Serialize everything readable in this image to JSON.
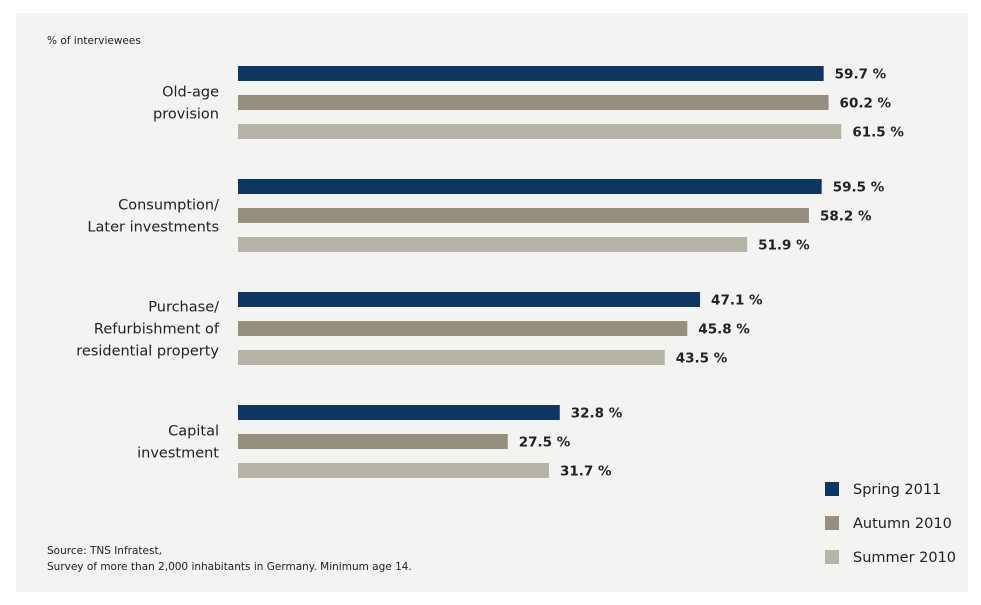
{
  "chart_data": {
    "type": "bar",
    "orientation": "horizontal",
    "unit_label": "% of interviewees",
    "categories": [
      [
        "Old-age",
        "provision"
      ],
      [
        "Consumption/",
        "Later investments"
      ],
      [
        "Purchase/",
        "Refurbishment of",
        "residential property"
      ],
      [
        "Capital",
        "investment"
      ]
    ],
    "series": [
      {
        "name": "Spring 2011",
        "color": "#0e3662",
        "values": [
          59.7,
          59.5,
          47.1,
          32.8
        ],
        "labels": [
          "59.7 %",
          "59.5 %",
          "47.1 %",
          "32.8 %"
        ]
      },
      {
        "name": "Autumn 2010",
        "color": "#948f7e",
        "values": [
          60.2,
          58.2,
          45.8,
          27.5
        ],
        "labels": [
          "60.2 %",
          "58.2 %",
          "45.8 %",
          "27.5 %"
        ]
      },
      {
        "name": "Summer 2010",
        "color": "#b6b3a7",
        "values": [
          61.5,
          51.9,
          43.5,
          31.7
        ],
        "labels": [
          "61.5 %",
          "51.9 %",
          "43.5 %",
          "31.7 %"
        ]
      }
    ],
    "xlim": [
      0,
      100
    ],
    "grid": false,
    "legend_position": "bottom-right",
    "source": [
      "Source: TNS Infratest,",
      "Survey of more than 2,000 inhabitants in Germany. Minimum age 14."
    ]
  }
}
